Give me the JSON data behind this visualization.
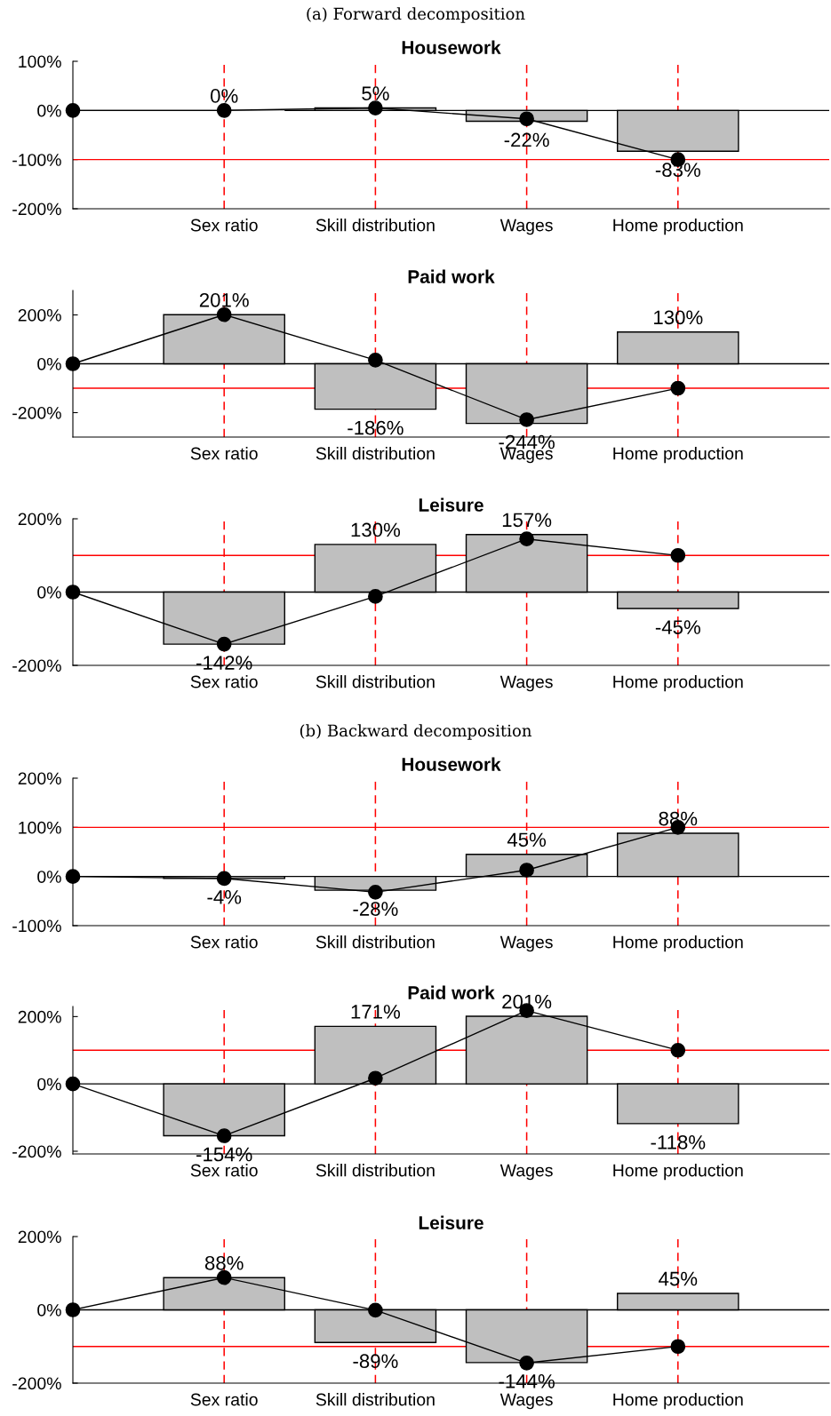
{
  "chart_data": [
    {
      "type": "bar",
      "subtitle": "(a) Forward decomposition",
      "title": "Housework",
      "categories": [
        null,
        "Sex ratio",
        "Skill distribution",
        "Wages",
        "Home production",
        null
      ],
      "grid": "x",
      "ylim": [
        -200,
        100
      ],
      "yticks": [
        {
          "value": -200,
          "label": "-200%"
        },
        {
          "value": -100,
          "label": "-100%"
        },
        {
          "value": 0,
          "label": "0%"
        },
        {
          "value": 100,
          "label": "100%"
        }
      ],
      "series": [
        {
          "color": "#bfbfbf",
          "values": [
            null,
            0,
            5,
            -22,
            -83,
            null
          ],
          "value_labels": [
            null,
            "0%",
            "5%",
            "-22%",
            "-83%",
            null
          ]
        },
        {
          "type": "line",
          "color": "#000000",
          "marker": "circle",
          "values": [
            0,
            0,
            5,
            -17,
            -100,
            null
          ]
        }
      ],
      "ref_lines": [
        {
          "axis": "y",
          "value": 0,
          "color": "#000000"
        },
        {
          "axis": "y",
          "value": -100,
          "color": "#ff0000"
        }
      ]
    },
    {
      "type": "bar",
      "title": "Paid work",
      "categories": [
        null,
        "Sex ratio",
        "Skill distribution",
        "Wages",
        "Home production",
        null
      ],
      "grid": "x",
      "ylim": [
        -300,
        300
      ],
      "yticks": [
        {
          "value": -200,
          "label": "-200%"
        },
        {
          "value": 0,
          "label": "0%"
        },
        {
          "value": 200,
          "label": "200%"
        }
      ],
      "series": [
        {
          "color": "#bfbfbf",
          "values": [
            null,
            201,
            -186,
            -244,
            130,
            null
          ],
          "value_labels": [
            null,
            "201%",
            "-186%",
            "-244%",
            "130%",
            null
          ]
        },
        {
          "type": "line",
          "color": "#000000",
          "marker": "circle",
          "values": [
            0,
            201,
            15,
            -229,
            -100,
            null
          ]
        }
      ],
      "ref_lines": [
        {
          "axis": "y",
          "value": 0,
          "color": "#000000"
        },
        {
          "axis": "y",
          "value": -100,
          "color": "#ff0000"
        }
      ]
    },
    {
      "type": "bar",
      "title": "Leisure",
      "categories": [
        null,
        "Sex ratio",
        "Skill distribution",
        "Wages",
        "Home production",
        null
      ],
      "grid": "x",
      "ylim": [
        -200,
        200
      ],
      "yticks": [
        {
          "value": -200,
          "label": "-200%"
        },
        {
          "value": 0,
          "label": "0%"
        },
        {
          "value": 200,
          "label": "200%"
        }
      ],
      "series": [
        {
          "color": "#bfbfbf",
          "values": [
            null,
            -142,
            130,
            157,
            -45,
            null
          ],
          "value_labels": [
            null,
            "-142%",
            "130%",
            "157%",
            "-45%",
            null
          ]
        },
        {
          "type": "line",
          "color": "#000000",
          "marker": "circle",
          "values": [
            0,
            -142,
            -12,
            145,
            100,
            null
          ]
        }
      ],
      "ref_lines": [
        {
          "axis": "y",
          "value": 0,
          "color": "#000000"
        },
        {
          "axis": "y",
          "value": 100,
          "color": "#ff0000"
        }
      ]
    },
    {
      "type": "bar",
      "subtitle": "(b) Backward decomposition",
      "title": "Housework",
      "categories": [
        null,
        "Sex ratio",
        "Skill distribution",
        "Wages",
        "Home production",
        null
      ],
      "grid": "x",
      "ylim": [
        -100,
        200
      ],
      "yticks": [
        {
          "value": -100,
          "label": "-100%"
        },
        {
          "value": 0,
          "label": "0%"
        },
        {
          "value": 100,
          "label": "100%"
        },
        {
          "value": 200,
          "label": "200%"
        }
      ],
      "series": [
        {
          "color": "#bfbfbf",
          "values": [
            null,
            -4,
            -28,
            45,
            88,
            null
          ],
          "value_labels": [
            null,
            "-4%",
            "-28%",
            "45%",
            "88%",
            null
          ]
        },
        {
          "type": "line",
          "color": "#000000",
          "marker": "circle",
          "values": [
            0,
            -4,
            -32,
            13,
            100,
            null
          ]
        }
      ],
      "ref_lines": [
        {
          "axis": "y",
          "value": 0,
          "color": "#000000"
        },
        {
          "axis": "y",
          "value": 100,
          "color": "#ff0000"
        }
      ]
    },
    {
      "type": "bar",
      "title": "Paid work",
      "categories": [
        null,
        "Sex ratio",
        "Skill distribution",
        "Wages",
        "Home production",
        null
      ],
      "grid": "x",
      "ylim": [
        -208,
        230
      ],
      "yticks": [
        {
          "value": -200,
          "label": "-200%"
        },
        {
          "value": 0,
          "label": "0%"
        },
        {
          "value": 200,
          "label": "200%"
        }
      ],
      "series": [
        {
          "color": "#bfbfbf",
          "values": [
            null,
            -154,
            171,
            201,
            -118,
            null
          ],
          "value_labels": [
            null,
            "-154%",
            "171%",
            "201%",
            "-118%",
            null
          ]
        },
        {
          "type": "line",
          "color": "#000000",
          "marker": "circle",
          "values": [
            0,
            -154,
            17,
            218,
            100,
            null
          ]
        }
      ],
      "ref_lines": [
        {
          "axis": "y",
          "value": 0,
          "color": "#000000"
        },
        {
          "axis": "y",
          "value": 100,
          "color": "#ff0000"
        }
      ]
    },
    {
      "type": "bar",
      "title": "Leisure",
      "categories": [
        null,
        "Sex ratio",
        "Skill distribution",
        "Wages",
        "Home production",
        null
      ],
      "grid": "x",
      "ylim": [
        -200,
        200
      ],
      "yticks": [
        {
          "value": -200,
          "label": "-200%"
        },
        {
          "value": 0,
          "label": "0%"
        },
        {
          "value": 200,
          "label": "200%"
        }
      ],
      "series": [
        {
          "color": "#bfbfbf",
          "values": [
            null,
            88,
            -89,
            -144,
            45,
            null
          ],
          "value_labels": [
            null,
            "88%",
            "-89%",
            "-144%",
            "45%",
            null
          ]
        },
        {
          "type": "line",
          "color": "#000000",
          "marker": "circle",
          "values": [
            0,
            88,
            -1,
            -145,
            -100,
            null
          ]
        }
      ],
      "ref_lines": [
        {
          "axis": "y",
          "value": 0,
          "color": "#000000"
        },
        {
          "axis": "y",
          "value": -100,
          "color": "#ff0000"
        }
      ]
    }
  ]
}
